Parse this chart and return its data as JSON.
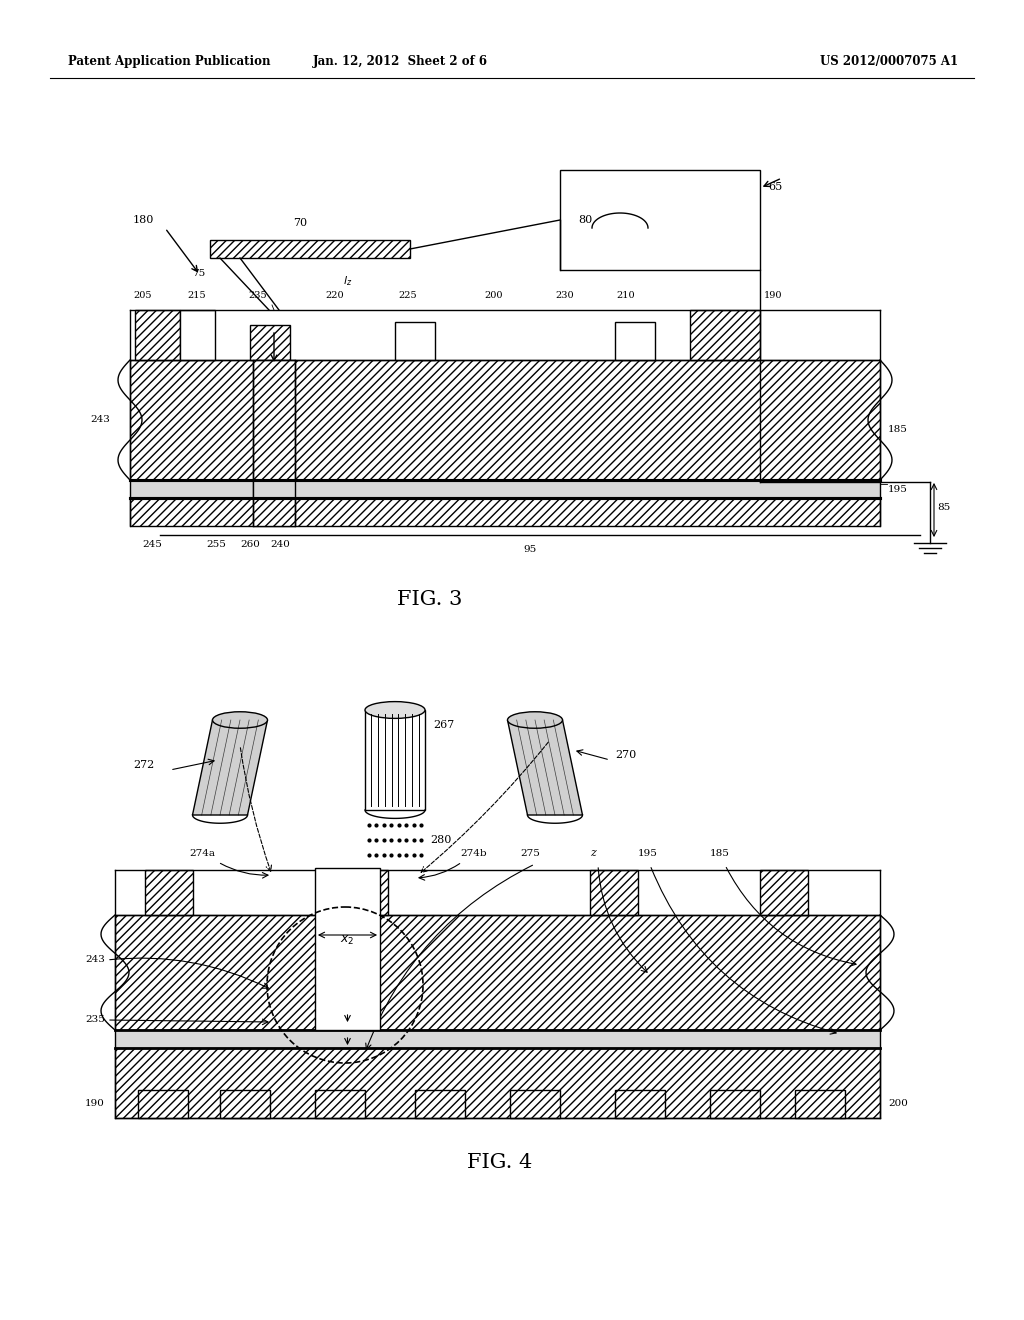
{
  "header_left": "Patent Application Publication",
  "header_center": "Jan. 12, 2012  Sheet 2 of 6",
  "header_right": "US 2012/0007075 A1",
  "fig3_label": "FIG. 3",
  "fig4_label": "FIG. 4",
  "bg_color": "#ffffff",
  "line_color": "#000000",
  "gray_light": "#d8d8d8",
  "gray_mid": "#a8a8a8"
}
